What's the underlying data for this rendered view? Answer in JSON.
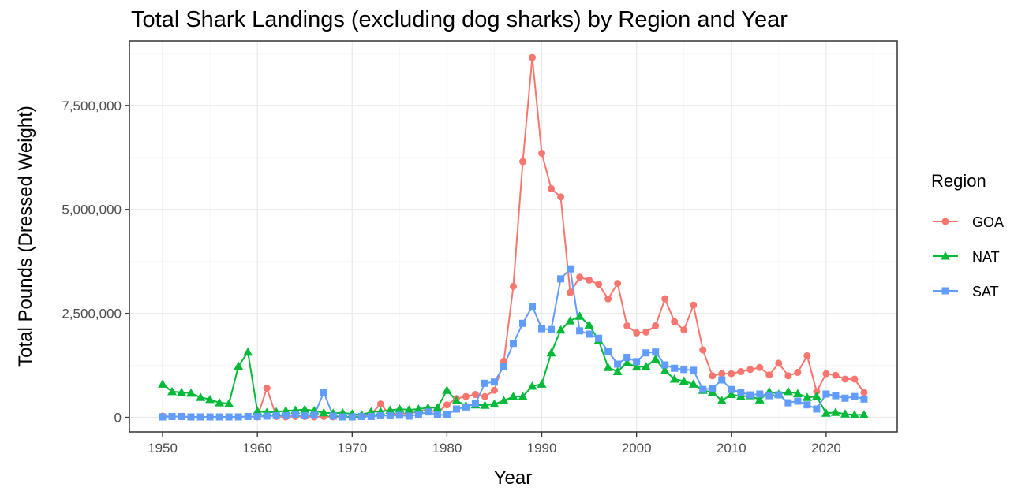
{
  "chart_data": {
    "type": "line",
    "title": "Total Shark Landings (excluding dog sharks) by Region and Year",
    "xlabel": "Year",
    "ylabel": "Total Pounds (Dressed Weight)",
    "xlim": [
      1946.5,
      2027.5
    ],
    "ylim": [
      -350000,
      9050000
    ],
    "x_ticks": [
      1950,
      1960,
      1970,
      1980,
      1990,
      2000,
      2010,
      2020
    ],
    "x_tick_labels": [
      "1950",
      "1960",
      "1970",
      "1980",
      "1990",
      "2000",
      "2010",
      "2020"
    ],
    "y_ticks": [
      0,
      2500000,
      5000000,
      7500000
    ],
    "y_tick_labels": [
      "0",
      "2,500,000",
      "5,000,000",
      "7,500,000"
    ],
    "grid": true,
    "legend": {
      "title": "Region",
      "position": "right"
    },
    "x": [
      1950,
      1951,
      1952,
      1953,
      1954,
      1955,
      1956,
      1957,
      1958,
      1959,
      1960,
      1961,
      1962,
      1963,
      1964,
      1965,
      1966,
      1967,
      1968,
      1969,
      1970,
      1971,
      1972,
      1973,
      1974,
      1975,
      1976,
      1977,
      1978,
      1979,
      1980,
      1981,
      1982,
      1983,
      1984,
      1985,
      1986,
      1987,
      1988,
      1989,
      1990,
      1991,
      1992,
      1993,
      1994,
      1995,
      1996,
      1997,
      1998,
      1999,
      2000,
      2001,
      2002,
      2003,
      2004,
      2005,
      2006,
      2007,
      2008,
      2009,
      2010,
      2011,
      2012,
      2013,
      2014,
      2015,
      2016,
      2017,
      2018,
      2019,
      2020,
      2021,
      2022,
      2023,
      2024
    ],
    "series": [
      {
        "name": "GOA",
        "color": "#f8766d",
        "marker": "circle",
        "values": [
          30000,
          20000,
          20000,
          10000,
          10000,
          10000,
          10000,
          10000,
          10000,
          20000,
          10000,
          700000,
          20000,
          10000,
          20000,
          20000,
          10000,
          20000,
          10000,
          10000,
          20000,
          30000,
          80000,
          320000,
          50000,
          100000,
          80000,
          150000,
          180000,
          120000,
          300000,
          450000,
          500000,
          550000,
          500000,
          650000,
          1350000,
          3150000,
          6150000,
          8650000,
          6350000,
          5500000,
          5300000,
          3000000,
          3370000,
          3300000,
          3200000,
          2850000,
          3220000,
          2200000,
          2030000,
          2050000,
          2200000,
          2850000,
          2300000,
          2100000,
          2700000,
          1620000,
          1000000,
          1050000,
          1050000,
          1100000,
          1150000,
          1200000,
          1020000,
          1300000,
          1000000,
          1080000,
          1480000,
          620000,
          1050000,
          1010000,
          920000,
          920000,
          600000
        ]
      },
      {
        "name": "NAT",
        "color": "#00ba38",
        "marker": "triangle",
        "values": [
          800000,
          620000,
          600000,
          580000,
          480000,
          430000,
          350000,
          330000,
          1230000,
          1570000,
          150000,
          120000,
          130000,
          160000,
          170000,
          190000,
          160000,
          110000,
          100000,
          110000,
          80000,
          60000,
          130000,
          140000,
          170000,
          200000,
          180000,
          200000,
          230000,
          230000,
          650000,
          400000,
          280000,
          300000,
          290000,
          320000,
          400000,
          500000,
          500000,
          750000,
          800000,
          1550000,
          2100000,
          2320000,
          2430000,
          2220000,
          1850000,
          1200000,
          1100000,
          1310000,
          1210000,
          1220000,
          1400000,
          1120000,
          920000,
          870000,
          800000,
          650000,
          600000,
          400000,
          550000,
          500000,
          520000,
          420000,
          620000,
          560000,
          620000,
          570000,
          480000,
          500000,
          100000,
          120000,
          80000,
          60000,
          60000
        ]
      },
      {
        "name": "SAT",
        "color": "#619cff",
        "marker": "square",
        "values": [
          10000,
          20000,
          20000,
          10000,
          10000,
          10000,
          10000,
          10000,
          10000,
          20000,
          20000,
          30000,
          40000,
          40000,
          60000,
          40000,
          50000,
          600000,
          30000,
          10000,
          10000,
          20000,
          20000,
          40000,
          40000,
          50000,
          30000,
          70000,
          130000,
          60000,
          60000,
          200000,
          250000,
          330000,
          820000,
          850000,
          1230000,
          1780000,
          2260000,
          2670000,
          2130000,
          2110000,
          3330000,
          3570000,
          2080000,
          2000000,
          1900000,
          1590000,
          1280000,
          1440000,
          1340000,
          1550000,
          1570000,
          1260000,
          1180000,
          1150000,
          1130000,
          670000,
          700000,
          900000,
          670000,
          600000,
          540000,
          560000,
          520000,
          540000,
          350000,
          390000,
          300000,
          200000,
          560000,
          520000,
          460000,
          500000,
          440000
        ]
      }
    ]
  }
}
